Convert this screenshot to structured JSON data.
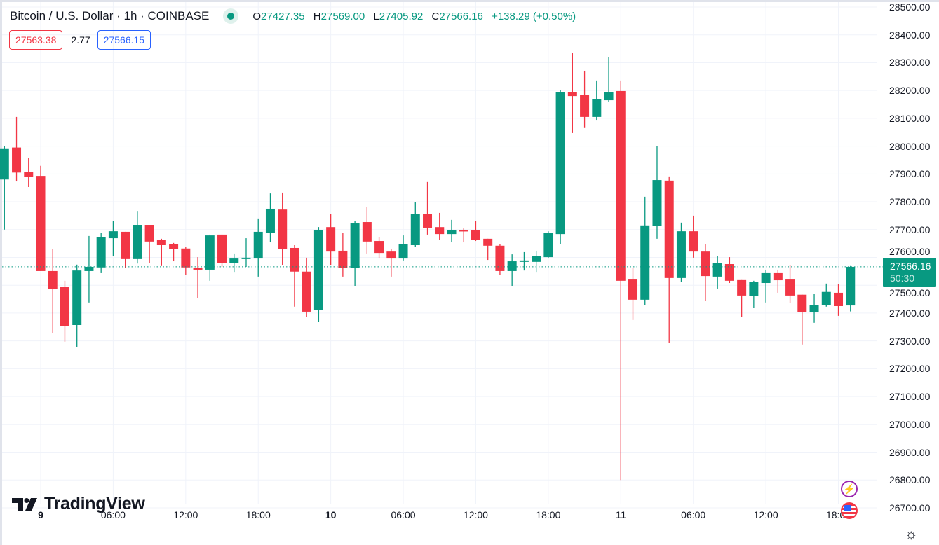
{
  "header": {
    "title": "Bitcoin / U.S. Dollar · 1h · COINBASE",
    "ohlc": [
      {
        "k": "O",
        "v": "27427.35"
      },
      {
        "k": "H",
        "v": "27569.00"
      },
      {
        "k": "L",
        "v": "27405.92"
      },
      {
        "k": "C",
        "v": "27566.16"
      }
    ],
    "change": "+138.29 (+0.50%)",
    "bid": "27563.38",
    "spread": "2.77",
    "ask": "27566.15"
  },
  "current": {
    "price": "27566.16",
    "countdown": "50:30"
  },
  "branding": {
    "logo": "TradingView"
  },
  "colors": {
    "up": "#089981",
    "down": "#f23645",
    "grid": "#f0f3fa"
  },
  "chart_data": {
    "type": "candlestick",
    "title": "Bitcoin / U.S. Dollar · 1h · COINBASE",
    "interval": "1h",
    "ylim": [
      26650,
      28550
    ],
    "y_ticks": [
      "28500.00",
      "28400.00",
      "28300.00",
      "28200.00",
      "28100.00",
      "28000.00",
      "27900.00",
      "27800.00",
      "27700.00",
      "27600.00",
      "27500.00",
      "27400.00",
      "27300.00",
      "27200.00",
      "27100.00",
      "27000.00",
      "26900.00",
      "26800.00",
      "26700.00"
    ],
    "x_ticks": [
      {
        "label": "9",
        "day": true
      },
      {
        "label": "06:00"
      },
      {
        "label": "12:00"
      },
      {
        "label": "18:00"
      },
      {
        "label": "10",
        "day": true
      },
      {
        "label": "06:00"
      },
      {
        "label": "12:00"
      },
      {
        "label": "18:00"
      },
      {
        "label": "11",
        "day": true
      },
      {
        "label": "06:00"
      },
      {
        "label": "12:00"
      },
      {
        "label": "18:00"
      }
    ],
    "first_candle_hour_offset": -3,
    "candles_ohlc": [
      [
        27880,
        28000,
        27700,
        27992
      ],
      [
        27995,
        28105,
        27873,
        27905
      ],
      [
        27908,
        27957,
        27853,
        27890
      ],
      [
        27893,
        27929,
        27551,
        27551
      ],
      [
        27551,
        27629,
        27327,
        27486
      ],
      [
        27493,
        27516,
        27297,
        27352
      ],
      [
        27357,
        27574,
        27279,
        27553
      ],
      [
        27551,
        27677,
        27438,
        27566
      ],
      [
        27564,
        27687,
        27546,
        27672
      ],
      [
        27669,
        27732,
        27606,
        27694
      ],
      [
        27692,
        27692,
        27561,
        27594
      ],
      [
        27594,
        27767,
        27578,
        27717
      ],
      [
        27717,
        27717,
        27581,
        27657
      ],
      [
        27662,
        27667,
        27569,
        27644
      ],
      [
        27647,
        27652,
        27586,
        27629
      ],
      [
        27632,
        27637,
        27538,
        27564
      ],
      [
        27561,
        27601,
        27455,
        27556
      ],
      [
        27556,
        27682,
        27516,
        27679
      ],
      [
        27682,
        27682,
        27566,
        27579
      ],
      [
        27579,
        27614,
        27548,
        27596
      ],
      [
        27594,
        27669,
        27566,
        27599
      ],
      [
        27596,
        27740,
        27531,
        27692
      ],
      [
        27689,
        27830,
        27654,
        27775
      ],
      [
        27772,
        27833,
        27571,
        27631
      ],
      [
        27634,
        27644,
        27423,
        27549
      ],
      [
        27549,
        27599,
        27387,
        27405
      ],
      [
        27410,
        27709,
        27367,
        27697
      ],
      [
        27709,
        27757,
        27571,
        27621
      ],
      [
        27624,
        27689,
        27531,
        27561
      ],
      [
        27561,
        27730,
        27498,
        27722
      ],
      [
        27727,
        27780,
        27614,
        27657
      ],
      [
        27659,
        27674,
        27596,
        27616
      ],
      [
        27621,
        27629,
        27531,
        27596
      ],
      [
        27596,
        27679,
        27589,
        27647
      ],
      [
        27644,
        27798,
        27637,
        27755
      ],
      [
        27755,
        27871,
        27682,
        27707
      ],
      [
        27709,
        27760,
        27664,
        27684
      ],
      [
        27684,
        27735,
        27654,
        27697
      ],
      [
        27697,
        27704,
        27654,
        27694
      ],
      [
        27697,
        27732,
        27659,
        27664
      ],
      [
        27667,
        27667,
        27591,
        27642
      ],
      [
        27642,
        27649,
        27538,
        27551
      ],
      [
        27551,
        27611,
        27498,
        27586
      ],
      [
        27584,
        27619,
        27553,
        27589
      ],
      [
        27584,
        27624,
        27548,
        27606
      ],
      [
        27601,
        27694,
        27596,
        27687
      ],
      [
        27684,
        28203,
        27647,
        28195
      ],
      [
        28195,
        28334,
        28047,
        28180
      ],
      [
        28183,
        28271,
        28065,
        28105
      ],
      [
        28105,
        28236,
        28092,
        28168
      ],
      [
        28165,
        28321,
        28158,
        28193
      ],
      [
        28198,
        28236,
        26800,
        27516
      ],
      [
        27523,
        27561,
        27375,
        27448
      ],
      [
        27448,
        27818,
        27430,
        27715
      ],
      [
        27712,
        28000,
        27667,
        27878
      ],
      [
        27876,
        27891,
        27294,
        27526
      ],
      [
        27526,
        27725,
        27513,
        27694
      ],
      [
        27694,
        27750,
        27599,
        27621
      ],
      [
        27621,
        27649,
        27445,
        27533
      ],
      [
        27531,
        27606,
        27488,
        27579
      ],
      [
        27576,
        27601,
        27508,
        27516
      ],
      [
        27521,
        27521,
        27385,
        27463
      ],
      [
        27461,
        27516,
        27418,
        27511
      ],
      [
        27508,
        27556,
        27438,
        27546
      ],
      [
        27546,
        27556,
        27473,
        27518
      ],
      [
        27523,
        27571,
        27435,
        27463
      ],
      [
        27466,
        27466,
        27287,
        27403
      ],
      [
        27403,
        27468,
        27365,
        27430
      ],
      [
        27428,
        27506,
        27423,
        27476
      ],
      [
        27473,
        27503,
        27390,
        27425
      ],
      [
        27427.35,
        27569,
        27405.92,
        27566.16
      ]
    ],
    "last_price": 27566.16,
    "grid": true
  }
}
